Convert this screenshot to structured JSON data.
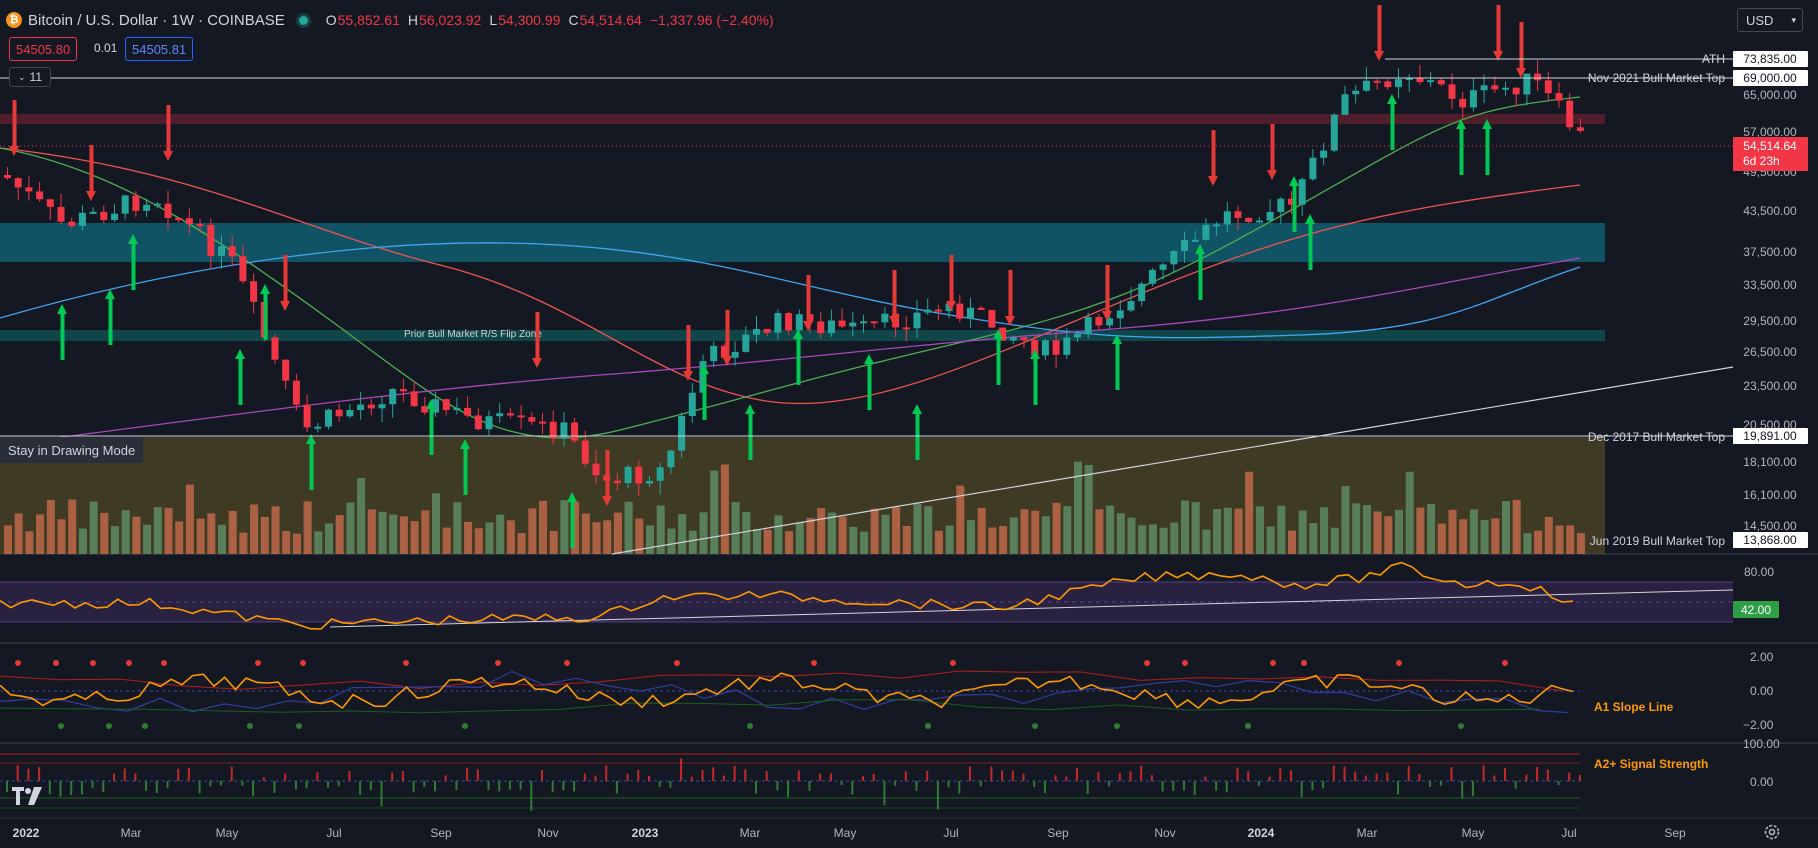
{
  "header": {
    "symbol_title": "Bitcoin / U.S. Dollar · 1W · COINBASE",
    "coin_icon": "bitcoin-icon",
    "status_icon": "live-dot-icon",
    "ohlc": [
      {
        "key": "O",
        "value": "55,852.61"
      },
      {
        "key": "H",
        "value": "56,023.92"
      },
      {
        "key": "L",
        "value": "54,300.99"
      },
      {
        "key": "C",
        "value": "54,514.64"
      }
    ],
    "change": "−1,337.96 (−2.40%)",
    "sell_price": "54505.80",
    "spread": "0.01",
    "buy_price": "54505.81",
    "indicators_count": "11"
  },
  "currency_select": "USD",
  "price_axis": {
    "labels": [
      "73,835.00",
      "69,000.00",
      "65,000.00",
      "57,000.00",
      "49,500.00",
      "43,500.00",
      "37,500.00",
      "33,500.00",
      "29,500.00",
      "26,500.00",
      "23,500.00",
      "20,500.00",
      "19,891.00",
      "18,100.00",
      "16,100.00",
      "14,500.00",
      "13,868.00"
    ],
    "current_price": "54,514.64",
    "countdown": "6d 23h"
  },
  "level_lines": [
    {
      "label": "ATH",
      "price": "73,835.00"
    },
    {
      "label": "Nov 2021 Bull Market Top",
      "price": "69,000.00"
    },
    {
      "label": "Dec 2017 Bull Market Top",
      "price": "19,891.00"
    },
    {
      "label": "Jun 2019 Bull Market Top",
      "price": "13,868.00"
    }
  ],
  "zones": {
    "flip_zone_label": "Prior Bull Market R/S Flip Zone"
  },
  "rsi_panel": {
    "level_label": "80.00",
    "current_value": "42.00"
  },
  "slope_panel": {
    "labels": [
      "2.00",
      "0.00",
      "−2.00"
    ],
    "series_name": "A1 Slope Line"
  },
  "signal_panel": {
    "labels": [
      "100.00",
      "0.00"
    ],
    "series_name": "A2+ Signal Strength"
  },
  "time_axis": [
    "2022",
    "Mar",
    "May",
    "Jul",
    "Sep",
    "Nov",
    "2023",
    "Mar",
    "May",
    "Jul",
    "Sep",
    "Nov",
    "2024",
    "Mar",
    "May",
    "Jul",
    "Sep"
  ],
  "drawing_tooltip": "Stay in Drawing Mode",
  "colors": {
    "background": "#141823",
    "up": "#26a69a",
    "down": "#f23645",
    "signal_up": "#00c853",
    "signal_down": "#e53935",
    "rsi_line": "#ff9800",
    "cyan_zone": "#0f5a6b",
    "red_zone": "#5a1f2e",
    "volume_zone": "#4d4526"
  },
  "icons": {
    "settings": "gear-icon",
    "logo": "tradingview-logo-icon",
    "chevron": "chevron-down-icon"
  },
  "chart_data": {
    "type": "candlestick",
    "price_levels": [
      73835,
      69000,
      19891,
      13868
    ],
    "current_price": 54514.64,
    "rsi_current": 42,
    "timeframe": "1W"
  }
}
